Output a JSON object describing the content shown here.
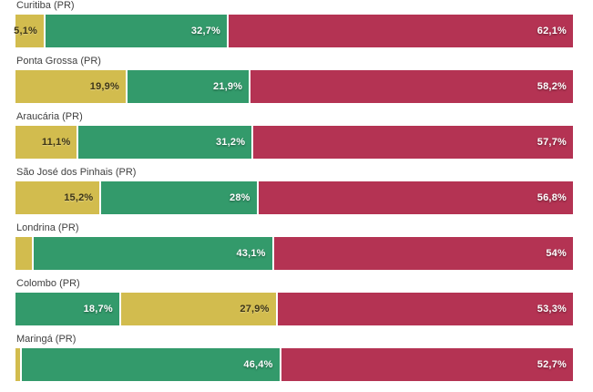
{
  "chart_data": {
    "type": "bar",
    "variant": "horizontal-stacked",
    "unit": "%",
    "xlim": [
      0,
      100
    ],
    "grid": false,
    "legend": "none",
    "value_label_position": "inside-right",
    "colors": {
      "yellow": {
        "fill": "#d2bc4e",
        "label": "#3d3516"
      },
      "green": {
        "fill": "#339a6b",
        "label": "#ffffff"
      },
      "red": {
        "fill": "#b43353",
        "label": "#ffffff"
      }
    },
    "rows": [
      {
        "category": "Curitiba (PR)",
        "segments": [
          {
            "color": "yellow",
            "value": 5.1,
            "label": "5,1%"
          },
          {
            "color": "green",
            "value": 32.7,
            "label": "32,7%"
          },
          {
            "color": "red",
            "value": 62.1,
            "label": "62,1%"
          }
        ]
      },
      {
        "category": "Ponta Grossa (PR)",
        "segments": [
          {
            "color": "yellow",
            "value": 19.9,
            "label": "19,9%"
          },
          {
            "color": "green",
            "value": 21.9,
            "label": "21,9%"
          },
          {
            "color": "red",
            "value": 58.2,
            "label": "58,2%"
          }
        ]
      },
      {
        "category": "Araucária (PR)",
        "segments": [
          {
            "color": "yellow",
            "value": 11.1,
            "label": "11,1%"
          },
          {
            "color": "green",
            "value": 31.2,
            "label": "31,2%"
          },
          {
            "color": "red",
            "value": 57.7,
            "label": "57,7%"
          }
        ]
      },
      {
        "category": "São José dos Pinhais (PR)",
        "segments": [
          {
            "color": "yellow",
            "value": 15.2,
            "label": "15,2%"
          },
          {
            "color": "green",
            "value": 28,
            "label": "28%"
          },
          {
            "color": "red",
            "value": 56.8,
            "label": "56,8%"
          }
        ]
      },
      {
        "category": "Londrina (PR)",
        "segments": [
          {
            "color": "yellow",
            "value": 2.9,
            "label": null
          },
          {
            "color": "green",
            "value": 43.1,
            "label": "43,1%"
          },
          {
            "color": "red",
            "value": 54,
            "label": "54%"
          }
        ]
      },
      {
        "category": "Colombo (PR)",
        "segments": [
          {
            "color": "green",
            "value": 18.7,
            "label": "18,7%"
          },
          {
            "color": "yellow",
            "value": 27.9,
            "label": "27,9%"
          },
          {
            "color": "red",
            "value": 53.3,
            "label": "53,3%"
          }
        ]
      },
      {
        "category": "Maringá (PR)",
        "segments": [
          {
            "color": "yellow",
            "value": 0.9,
            "label": null
          },
          {
            "color": "green",
            "value": 46.4,
            "label": "46,4%"
          },
          {
            "color": "red",
            "value": 52.7,
            "label": "52,7%"
          }
        ]
      }
    ]
  }
}
